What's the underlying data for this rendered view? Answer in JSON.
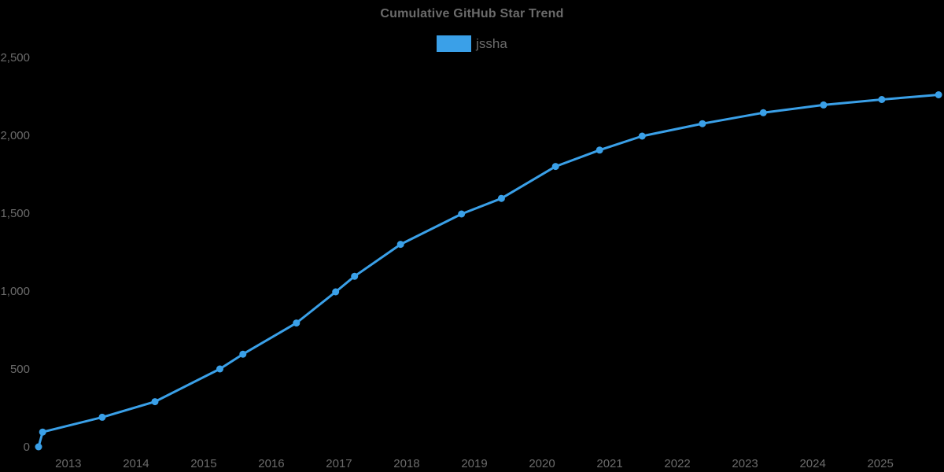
{
  "page": {
    "background_color": "#000000",
    "text_color": "#6b6b6b"
  },
  "chart_data": {
    "type": "line",
    "title": "Cumulative GitHub Star Trend",
    "xlabel": "",
    "ylabel": "",
    "grid": false,
    "legend": {
      "position": "top",
      "entries": [
        {
          "label": "jssha",
          "color": "#3aa0e8"
        }
      ]
    },
    "xlim": [
      2012.56,
      2025.87
    ],
    "ylim": [
      0,
      2500
    ],
    "x_ticks": [
      {
        "value": 2013,
        "label": "2013"
      },
      {
        "value": 2014,
        "label": "2014"
      },
      {
        "value": 2015,
        "label": "2015"
      },
      {
        "value": 2016,
        "label": "2016"
      },
      {
        "value": 2017,
        "label": "2017"
      },
      {
        "value": 2018,
        "label": "2018"
      },
      {
        "value": 2019,
        "label": "2019"
      },
      {
        "value": 2020,
        "label": "2020"
      },
      {
        "value": 2021,
        "label": "2021"
      },
      {
        "value": 2022,
        "label": "2022"
      },
      {
        "value": 2023,
        "label": "2023"
      },
      {
        "value": 2024,
        "label": "2024"
      },
      {
        "value": 2025,
        "label": "2025"
      }
    ],
    "y_ticks": [
      {
        "value": 0,
        "label": "0"
      },
      {
        "value": 500,
        "label": "500"
      },
      {
        "value": 1000,
        "label": "1,000"
      },
      {
        "value": 1500,
        "label": "1,500"
      },
      {
        "value": 2000,
        "label": "2,000"
      },
      {
        "value": 2500,
        "label": "2,500"
      }
    ],
    "series": [
      {
        "name": "jssha",
        "color": "#3aa0e8",
        "marker_radius": 4.5,
        "line_width": 3,
        "points": [
          [
            2012.56,
            0
          ],
          [
            2012.62,
            95
          ],
          [
            2013.5,
            190
          ],
          [
            2014.28,
            290
          ],
          [
            2015.24,
            500
          ],
          [
            2015.58,
            595
          ],
          [
            2016.37,
            795
          ],
          [
            2016.95,
            995
          ],
          [
            2017.23,
            1095
          ],
          [
            2017.91,
            1300
          ],
          [
            2018.81,
            1495
          ],
          [
            2019.4,
            1595
          ],
          [
            2020.2,
            1800
          ],
          [
            2020.85,
            1905
          ],
          [
            2021.48,
            1995
          ],
          [
            2022.37,
            2075
          ],
          [
            2023.27,
            2145
          ],
          [
            2024.16,
            2195
          ],
          [
            2025.02,
            2230
          ],
          [
            2025.86,
            2260
          ]
        ]
      }
    ]
  }
}
